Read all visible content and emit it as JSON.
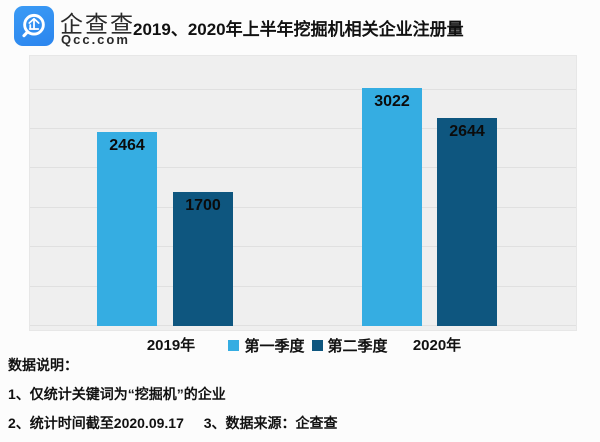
{
  "header": {
    "brand_cn": "企查查",
    "brand_domain": "Qcc.com",
    "logo_color": "#2e8cf0",
    "title": "2019、2020年上半年挖掘机相关企业注册量"
  },
  "chart_data": {
    "type": "bar",
    "title": "2019、2020年上半年挖掘机相关企业注册量",
    "categories": [
      "2019年",
      "2020年"
    ],
    "series": [
      {
        "name": "第一季度",
        "color": "#35ade2",
        "values": [
          2464,
          3022
        ]
      },
      {
        "name": "第二季度",
        "color": "#0e567f",
        "values": [
          1700,
          2644
        ]
      }
    ],
    "xlabel": "",
    "ylabel": "",
    "ylim": [
      0,
      3450
    ],
    "gridline_step": 500,
    "grid": true,
    "legend_position": "bottom-center",
    "data_labels": "inside-top"
  },
  "footnotes": {
    "heading": "数据说明：",
    "line1": "1、仅统计关键词为“挖掘机”的企业",
    "line2_part1": "2、统计时间截至2020.09.17",
    "line2_part2": "3、数据来源：企查查"
  }
}
